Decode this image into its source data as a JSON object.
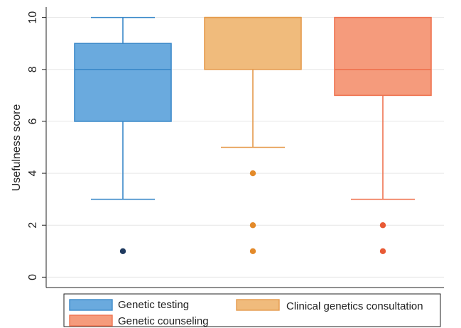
{
  "chart_data": {
    "type": "box",
    "title": "",
    "xlabel": "",
    "ylabel": "Usefulness score",
    "ylim": [
      -0.4,
      10.4
    ],
    "yticks": [
      0,
      2,
      4,
      6,
      8,
      10
    ],
    "grid": true,
    "legend_position": "bottom",
    "series": [
      {
        "name": "Genetic testing",
        "color": "#6aaade",
        "stroke": "#3b89c9",
        "outlier_color": "#1f3a5f",
        "whisker_low": 3,
        "q1": 6,
        "median": 8,
        "q3": 9,
        "whisker_high": 10,
        "outliers": [
          1
        ]
      },
      {
        "name": "Clinical genetics consultation",
        "color": "#f0bb7c",
        "stroke": "#e59a4c",
        "outlier_color": "#e38a2a",
        "whisker_low": 5,
        "q1": 8,
        "median": 10,
        "q3": 10,
        "whisker_high": 10,
        "outliers": [
          4,
          2,
          1
        ]
      },
      {
        "name": "Genetic counseling",
        "color": "#f59b7c",
        "stroke": "#ef7350",
        "outlier_color": "#e85a35",
        "whisker_low": 3,
        "q1": 7,
        "median": 8,
        "q3": 10,
        "whisker_high": 10,
        "outliers": [
          2,
          1
        ]
      }
    ]
  }
}
